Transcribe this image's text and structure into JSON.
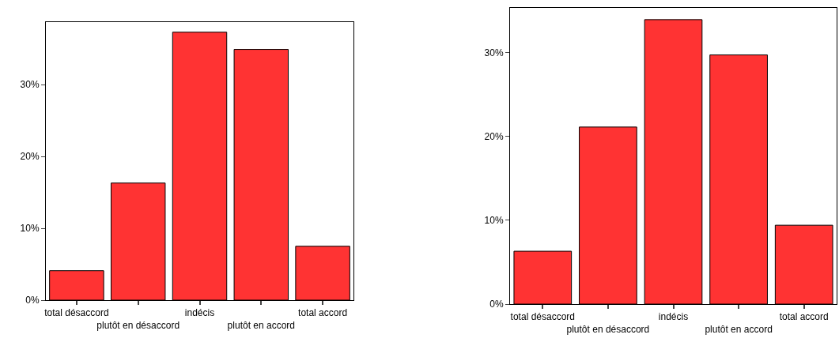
{
  "chart_data": [
    {
      "type": "bar",
      "categories": [
        "total désaccord",
        "plutôt en désaccord",
        "indécis",
        "plutôt en accord",
        "total accord"
      ],
      "values": [
        4.1,
        16.3,
        37.3,
        34.9,
        7.5
      ],
      "color": "#ff3333",
      "ylim": [
        0,
        38.7
      ],
      "yticks": [
        {
          "value": 0,
          "label": "0%"
        },
        {
          "value": 10,
          "label": "10%"
        },
        {
          "value": 20,
          "label": "20%"
        },
        {
          "value": 30,
          "label": "30%"
        }
      ],
      "grid": false
    },
    {
      "type": "bar",
      "categories": [
        "total désaccord",
        "plutôt en désaccord",
        "indécis",
        "plutôt en accord",
        "total accord"
      ],
      "values": [
        6.3,
        21.1,
        33.9,
        29.7,
        9.4
      ],
      "color": "#ff3333",
      "ylim": [
        0,
        35.3
      ],
      "yticks": [
        {
          "value": 0,
          "label": "0%"
        },
        {
          "value": 10,
          "label": "10%"
        },
        {
          "value": 20,
          "label": "20%"
        },
        {
          "value": 30,
          "label": "30%"
        }
      ],
      "grid": false
    }
  ]
}
